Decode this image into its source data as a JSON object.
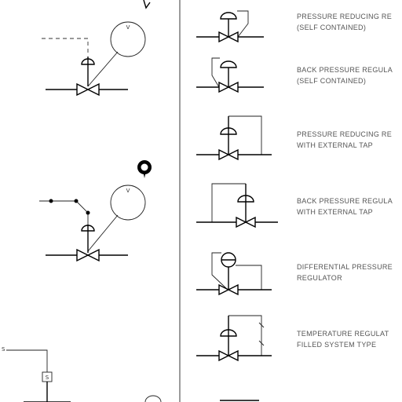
{
  "legend": {
    "items": [
      {
        "line1": "PRESSURE REDUCING RE",
        "line2": "(SELF CONTAINED)"
      },
      {
        "line1": "BACK PRESSURE REGULA",
        "line2": "(SELF CONTAINED)"
      },
      {
        "line1": "PRESSURE REDUCING RE",
        "line2": "WITH EXTERNAL TAP"
      },
      {
        "line1": "BACK PRESSURE REGULA",
        "line2": "WITH EXTERNAL TAP"
      },
      {
        "line1": "DIFFERENTIAL PRESSURE",
        "line2": "REGULATOR"
      },
      {
        "line1": "TEMPERATURE REGULAT",
        "line2": "FILLED SYSTEM TYPE"
      }
    ]
  },
  "left": {
    "instrument_a": "V",
    "instrument_b": "V",
    "box_label": "S",
    "partial_s": "S"
  }
}
